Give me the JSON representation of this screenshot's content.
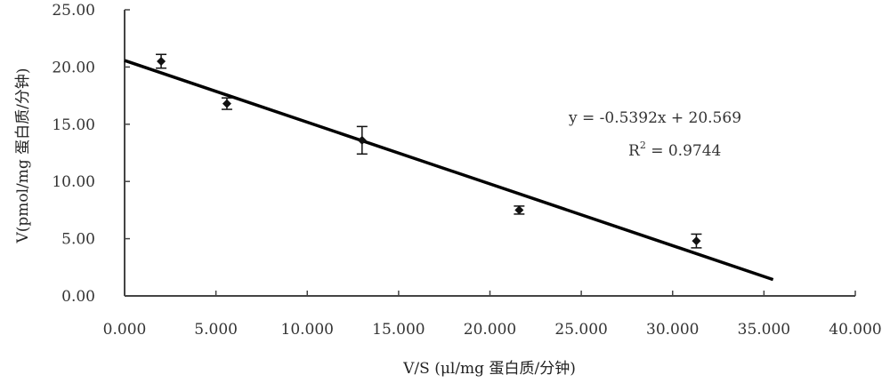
{
  "chart_data": {
    "type": "scatter",
    "title": "",
    "xlabel": "V/S (μl/mg 蛋白质/分钟)",
    "ylabel": "V(pmol/mg 蛋白质/分钟)",
    "xlim": [
      0,
      40
    ],
    "ylim": [
      0,
      25
    ],
    "xticks": [
      "0.000",
      "5.000",
      "10.000",
      "15.000",
      "20.000",
      "25.000",
      "30.000",
      "35.000",
      "40.000"
    ],
    "yticks": [
      "0.00",
      "5.00",
      "10.00",
      "15.00",
      "20.00",
      "25.00"
    ],
    "grid": false,
    "series": [
      {
        "name": "data",
        "marker": "diamond",
        "color": "#111111",
        "x": [
          2.0,
          5.6,
          13.0,
          21.6,
          31.3
        ],
        "y": [
          20.5,
          16.8,
          13.6,
          7.5,
          4.8
        ],
        "error": [
          0.6,
          0.5,
          1.2,
          0.35,
          0.6
        ]
      }
    ],
    "trendline": {
      "slope": -0.5392,
      "intercept": 20.569,
      "x_range": [
        0,
        35.5
      ],
      "equation": "y = -0.5392x + 20.569",
      "r2_label": "R",
      "r2_sup": "2",
      "r2_value": " = 0.9744"
    }
  }
}
